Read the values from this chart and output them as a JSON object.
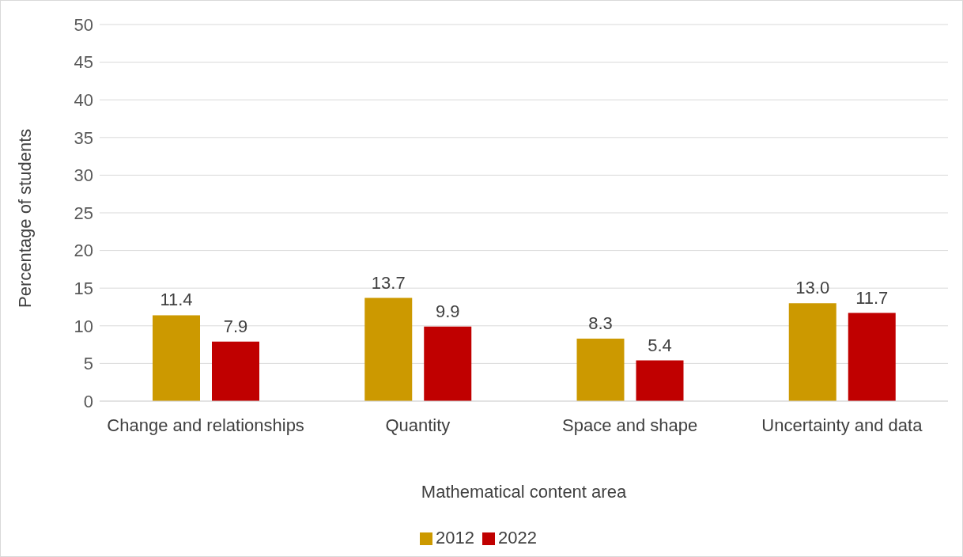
{
  "chart_data": {
    "type": "bar",
    "xlabel": "Mathematical content area",
    "ylabel": "Percentage of students",
    "categories": [
      "Change and relationships",
      "Quantity",
      "Space and shape",
      "Uncertainty and data"
    ],
    "series": [
      {
        "name": "2012",
        "color": "#cc9900",
        "values": [
          11.4,
          13.7,
          8.3,
          13.0
        ],
        "value_labels": [
          "11.4",
          "13.7",
          "8.3",
          "13.0"
        ]
      },
      {
        "name": "2022",
        "color": "#c00000",
        "values": [
          7.9,
          9.9,
          5.4,
          11.7
        ],
        "value_labels": [
          "7.9",
          "9.9",
          "5.4",
          "11.7"
        ]
      }
    ],
    "ylim": [
      0,
      50
    ],
    "yticks": [
      0,
      5,
      10,
      15,
      20,
      25,
      30,
      35,
      40,
      45,
      50
    ],
    "grid": "y",
    "legend": "bottom"
  }
}
